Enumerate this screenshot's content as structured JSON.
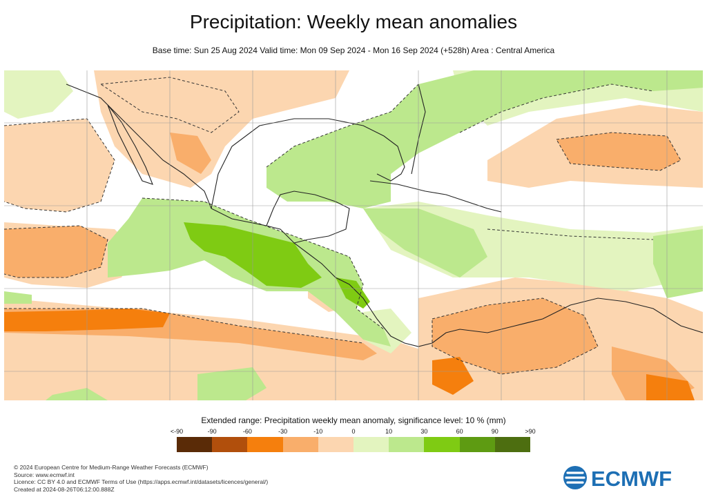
{
  "title": "Precipitation: Weekly mean anomalies",
  "subtitle": "Base time: Sun 25 Aug 2024 Valid time: Mon 09 Sep 2024 - Mon 16 Sep 2024 (+528h) Area : Central America",
  "legend": {
    "title": "Extended range: Precipitation weekly mean anomaly, significance level: 10 % (mm)",
    "ticks": [
      "<-90",
      "-90",
      "-60",
      "-30",
      "-10",
      "0",
      "10",
      "30",
      "60",
      "90",
      ">90"
    ],
    "colors": [
      "#5a2b07",
      "#b14f0c",
      "#f57f0d",
      "#f9ae6b",
      "#fcd6b0",
      "#e3f4bf",
      "#bce88d",
      "#7fcb13",
      "#5e9b12",
      "#4d6e10"
    ]
  },
  "footer": {
    "line1": "© 2024 European Centre for Medium-Range Weather Forecasts (ECMWF)",
    "line2": "Source: www.ecmwf.int",
    "line3": "Licence: CC BY 4.0 and ECMWF Terms of Use (https://apps.ecmwf.int/datasets/licences/general/)",
    "line4": "Created at 2024-08-26T06:12:00.888Z"
  },
  "logo_text": "ECMWF"
}
